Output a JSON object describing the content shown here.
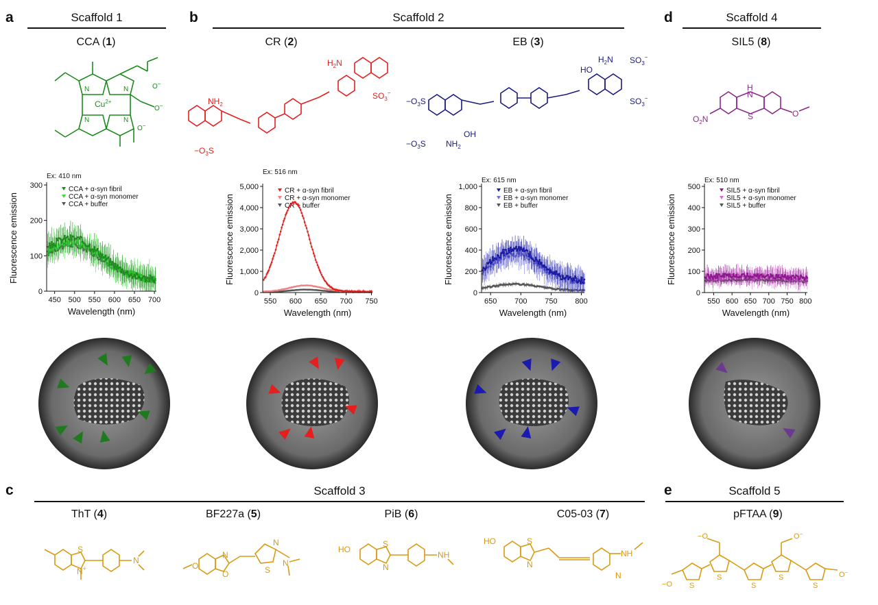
{
  "panels": {
    "a": {
      "letter": "a",
      "title": "Scaffold 1"
    },
    "b": {
      "letter": "b",
      "title": "Scaffold 2"
    },
    "d": {
      "letter": "d",
      "title": "Scaffold 4"
    },
    "c": {
      "letter": "c",
      "title": "Scaffold 3"
    },
    "e": {
      "letter": "e",
      "title": "Scaffold 5"
    }
  },
  "compounds": {
    "cca": {
      "name": "CCA (",
      "num": "1",
      "close": ")"
    },
    "cr": {
      "name": "CR (",
      "num": "2",
      "close": ")"
    },
    "eb": {
      "name": "EB (",
      "num": "3",
      "close": ")"
    },
    "sil5": {
      "name": "SIL5 (",
      "num": "8",
      "close": ")"
    },
    "tht": {
      "name": "ThT (",
      "num": "4",
      "close": ")"
    },
    "bf227a": {
      "name": "BF227a (",
      "num": "5",
      "close": ")"
    },
    "pib": {
      "name": "PiB (",
      "num": "6",
      "close": ")"
    },
    "c0503": {
      "name": "C05-03 (",
      "num": "7",
      "close": ")"
    },
    "pftaa": {
      "name": "pFTAA (",
      "num": "9",
      "close": ")"
    }
  },
  "structure_labels": {
    "cca": {
      "metal": "Cu",
      "metal_charge": "2+",
      "n": "N",
      "carboxylate": "O",
      "charge": "−"
    },
    "cr": {
      "nh2": "NH",
      "nh2_sub": "2",
      "h2n": "H",
      "h2n_sub": "2",
      "h2n_n": "N",
      "so3": "SO",
      "so3_sub": "3",
      "so3_sup": "−",
      "o3s": "−",
      "o3s_rest": "O",
      "o3s_sub": "3",
      "o3s_s": "S"
    },
    "eb": {
      "h2n": "H",
      "h2n_sub": "2",
      "h2n_n": "N",
      "ho": "HO",
      "so3a": "SO",
      "so3b": "SO",
      "o3s_a": "−O",
      "o3s_b": "−O",
      "o3s_sub": "3",
      "o3s_s": "S",
      "nh2": "NH",
      "nh2_sub": "2",
      "oh": "OH",
      "sub3": "3",
      "minus": "−"
    },
    "sil5": {
      "h": "H",
      "n": "N",
      "s": "S",
      "o2n": "O",
      "o2n_sub": "2",
      "o2n_n": "N",
      "o": "O"
    },
    "tht": {
      "s": "S",
      "n": "N",
      "n_plus": "+"
    },
    "bf227a": {
      "o": "O",
      "n": "N",
      "s": "S"
    },
    "pib": {
      "ho": "HO",
      "s": "S",
      "n": "N",
      "nh": "NH"
    },
    "c0503": {
      "ho": "HO",
      "s": "S",
      "n": "N",
      "nh": "NH"
    },
    "pftaa": {
      "s": "S",
      "o": "O",
      "minus": "−"
    }
  },
  "chart_data": [
    {
      "type": "line",
      "id": "cca",
      "excitation": "Ex: 410 nm",
      "xlabel": "Wavelength (nm)",
      "ylabel": "Fluorescence emission",
      "xlim": [
        430,
        705
      ],
      "ylim": [
        0,
        300
      ],
      "xticks": [
        450,
        500,
        550,
        600,
        650,
        700
      ],
      "yticks": [
        0,
        100,
        200,
        300
      ],
      "ytick_labels": [
        "0",
        "100",
        "200",
        "300"
      ],
      "series": [
        {
          "name": "CCA + α-syn fibril",
          "color": "#1f8a1f",
          "peak": 120,
          "peak_x": 490,
          "width": 110,
          "baseline": 30,
          "noise": 35
        },
        {
          "name": "CCA + α-syn monomer",
          "color": "#33e033",
          "peak": 110,
          "peak_x": 490,
          "width": 110,
          "baseline": 30,
          "noise": 40
        },
        {
          "name": "CCA + buffer",
          "color": "#555555",
          "peak": 100,
          "peak_x": 490,
          "width": 110,
          "baseline": 30,
          "noise": 25
        }
      ]
    },
    {
      "type": "line",
      "id": "cr",
      "excitation": "Ex: 516 nm",
      "xlabel": "Wavelength (nm)",
      "ylabel": "Fluorescence emission",
      "xlim": [
        535,
        752
      ],
      "ylim": [
        0,
        5000
      ],
      "xticks": [
        550,
        600,
        650,
        700,
        750
      ],
      "yticks": [
        0,
        1000,
        2000,
        3000,
        4000,
        5000
      ],
      "ytick_labels": [
        "0",
        "1,000",
        "2,000",
        "3,000",
        "4,000",
        "5,000"
      ],
      "series": [
        {
          "name": "CR + α-syn fibril",
          "color": "#e51e1e",
          "peak": 4200,
          "peak_x": 597,
          "width": 42,
          "baseline": 50,
          "noise": 80
        },
        {
          "name": "CR + α-syn monomer",
          "color": "#f08080",
          "peak": 300,
          "peak_x": 620,
          "width": 45,
          "baseline": 40,
          "noise": 30
        },
        {
          "name": "CR + buffer",
          "color": "#555555",
          "peak": 120,
          "peak_x": 620,
          "width": 45,
          "baseline": 20,
          "noise": 15
        }
      ]
    },
    {
      "type": "line",
      "id": "eb",
      "excitation": "Ex: 615 nm",
      "xlabel": "Wavelength (nm)",
      "ylabel": "Fluorescence emission",
      "xlim": [
        635,
        805
      ],
      "ylim": [
        0,
        1000
      ],
      "xticks": [
        650,
        700,
        750,
        800
      ],
      "yticks": [
        0,
        200,
        400,
        600,
        800,
        1000
      ],
      "ytick_labels": [
        "0",
        "200",
        "400",
        "600",
        "800",
        "1,000"
      ],
      "series": [
        {
          "name": "EB + α-syn fibril",
          "color": "#1a1aa0",
          "peak": 300,
          "peak_x": 690,
          "width": 55,
          "baseline": 110,
          "noise": 110
        },
        {
          "name": "EB + α-syn monomer",
          "color": "#6f6fe0",
          "peak": 260,
          "peak_x": 690,
          "width": 55,
          "baseline": 110,
          "noise": 120
        },
        {
          "name": "EB + buffer",
          "color": "#555555",
          "peak": 60,
          "peak_x": 690,
          "width": 55,
          "baseline": 20,
          "noise": 20
        }
      ]
    },
    {
      "type": "line",
      "id": "sil5",
      "excitation": "Ex: 510 nm",
      "xlabel": "Wavelength (nm)",
      "ylabel": "Fluorescence emission",
      "xlim": [
        525,
        805
      ],
      "ylim": [
        0,
        500
      ],
      "xticks": [
        550,
        600,
        650,
        700,
        750,
        800
      ],
      "yticks": [
        0,
        100,
        200,
        300,
        400,
        500
      ],
      "ytick_labels": [
        "0",
        "100",
        "200",
        "300",
        "400",
        "500"
      ],
      "series": [
        {
          "name": "SIL5 + α-syn fibril",
          "color": "#8a1a8a",
          "peak": 80,
          "peak_x": 640,
          "width": 400,
          "baseline": 0,
          "noise": 40
        },
        {
          "name": "SIL5 + α-syn monomer",
          "color": "#e060e0",
          "peak": 75,
          "peak_x": 640,
          "width": 400,
          "baseline": 0,
          "noise": 45
        },
        {
          "name": "SIL5 + buffer",
          "color": "#555555",
          "peak": 60,
          "peak_x": 640,
          "width": 400,
          "baseline": 0,
          "noise": 15
        }
      ]
    }
  ],
  "arrow_colors": {
    "cca": "#1e7a1e",
    "cr": "#e51e1e",
    "eb": "#1a1ab0",
    "sil5": "#6b3a8f"
  },
  "struct_colors": {
    "cca": "#1c8a1c",
    "cr": "#e51e1e",
    "eb": "#1a1a7f",
    "sil5": "#8a2a8a",
    "scaffold3": "#d99a12"
  }
}
